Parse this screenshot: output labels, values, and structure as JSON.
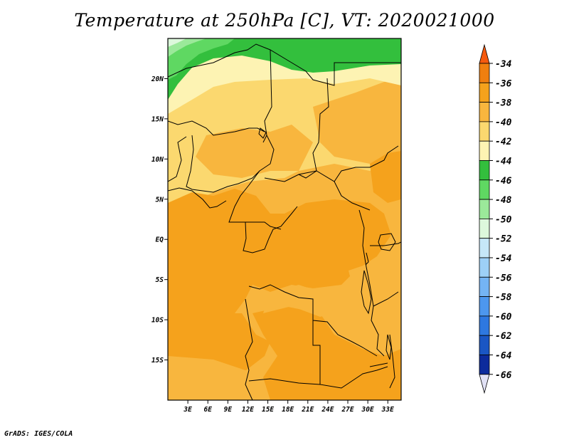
{
  "title": "Temperature at 250hPa [C], VT: 2020021000",
  "credit": "GrADS: IGES/COLA",
  "map": {
    "lat_labels": [
      "20N",
      "15N",
      "10N",
      "5N",
      "EQ",
      "5S",
      "10S",
      "15S"
    ],
    "lat_values": [
      20,
      15,
      10,
      5,
      0,
      -5,
      -10,
      -15
    ],
    "lon_labels": [
      "3E",
      "6E",
      "9E",
      "12E",
      "15E",
      "18E",
      "21E",
      "24E",
      "27E",
      "30E",
      "33E"
    ],
    "lon_values": [
      3,
      6,
      9,
      12,
      15,
      18,
      21,
      24,
      27,
      30,
      33
    ],
    "lon_range": [
      0,
      35
    ],
    "lat_range": [
      -20,
      25
    ]
  },
  "colorbar": {
    "labels": [
      "-34",
      "-36",
      "-38",
      "-40",
      "-42",
      "-44",
      "-46",
      "-48",
      "-50",
      "-52",
      "-54",
      "-56",
      "-58",
      "-60",
      "-62",
      "-64",
      "-66"
    ],
    "colors": [
      "#f55a0f",
      "#f07f0f",
      "#f5a21c",
      "#f8b63e",
      "#fbd86f",
      "#fdf3b3",
      "#33bf3d",
      "#5fd862",
      "#9be99a",
      "#ddf8dc",
      "#c6e7f8",
      "#9dd0f7",
      "#74b4f4",
      "#4d97ee",
      "#2e78e0",
      "#1a56c4",
      "#0c2b9c",
      "#081a6c",
      "#e1e1f5"
    ]
  },
  "fields": {
    "t36": "#f07f0f",
    "t38": "#f5a21c",
    "t40": "#f8b63e",
    "t42": "#fbd86f",
    "t44": "#fdf3b3",
    "t46": "#33bf3d",
    "t48": "#5fd862",
    "t50": "#9be99a",
    "t52": "#ddf8dc"
  }
}
